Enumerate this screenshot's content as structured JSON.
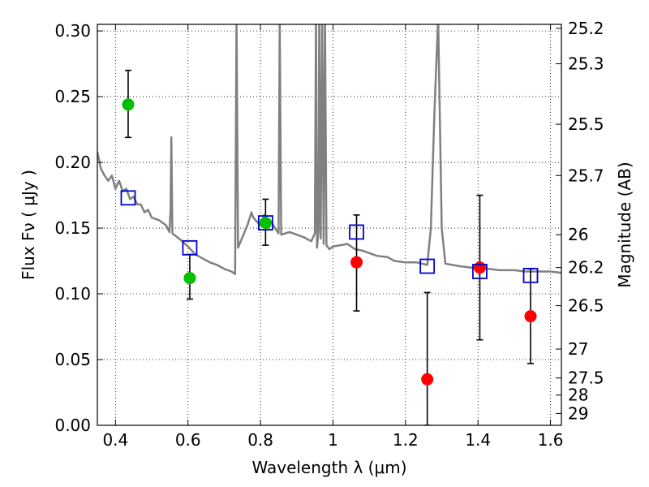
{
  "chart_data": {
    "type": "scatter",
    "xlabel": "Wavelength  λ (μm)",
    "ylabel": "Flux  Fν  ( μJy )",
    "ylabel_right": "Magnitude (AB)",
    "xlim": [
      0.35,
      1.63
    ],
    "ylim": [
      0.0,
      0.305
    ],
    "grid": true,
    "x_ticks": [
      0.4,
      0.6,
      0.8,
      1.0,
      1.2,
      1.4,
      1.6
    ],
    "x_tick_labels": [
      "0.4",
      "0.6",
      "0.8",
      "1",
      "1.2",
      "1.4",
      "1.6"
    ],
    "y_ticks": [
      0.0,
      0.05,
      0.1,
      0.15,
      0.2,
      0.25,
      0.3
    ],
    "y_tick_labels": [
      "0.00",
      "0.05",
      "0.10",
      "0.15",
      "0.20",
      "0.25",
      "0.30"
    ],
    "right_ticks": [
      {
        "label": "25.2",
        "flux": 0.302
      },
      {
        "label": "25.3",
        "flux": 0.275
      },
      {
        "label": "25.5",
        "flux": 0.229
      },
      {
        "label": "25.7",
        "flux": 0.19
      },
      {
        "label": "26",
        "flux": 0.145
      },
      {
        "label": "26.2",
        "flux": 0.12
      },
      {
        "label": "26.5",
        "flux": 0.091
      },
      {
        "label": "27",
        "flux": 0.058
      },
      {
        "label": "27.5",
        "flux": 0.036
      },
      {
        "label": "28",
        "flux": 0.023
      },
      {
        "label": "29",
        "flux": 0.009
      }
    ],
    "series": [
      {
        "kind": "detected",
        "color": "#00c000",
        "points": [
          {
            "x": 0.435,
            "y": 0.244,
            "err_lo": 0.219,
            "err_hi": 0.27
          },
          {
            "x": 0.605,
            "y": 0.112,
            "err_lo": 0.096,
            "err_hi": 0.13
          },
          {
            "x": 0.814,
            "y": 0.154,
            "err_lo": 0.137,
            "err_hi": 0.172
          }
        ]
      },
      {
        "kind": "upper",
        "color": "#ff0000",
        "points": [
          {
            "x": 1.065,
            "y": 0.124,
            "err_lo": 0.087,
            "err_hi": 0.16
          },
          {
            "x": 1.26,
            "y": 0.035,
            "err_lo": 0.0,
            "err_hi": 0.101
          },
          {
            "x": 1.405,
            "y": 0.12,
            "err_lo": 0.065,
            "err_hi": 0.175
          },
          {
            "x": 1.545,
            "y": 0.083,
            "err_lo": 0.047,
            "err_hi": 0.119
          }
        ]
      },
      {
        "kind": "model-photometry",
        "color": "#0000cc",
        "points": [
          {
            "x": 0.435,
            "y": 0.173
          },
          {
            "x": 0.605,
            "y": 0.135
          },
          {
            "x": 0.814,
            "y": 0.154
          },
          {
            "x": 1.065,
            "y": 0.147
          },
          {
            "x": 1.26,
            "y": 0.121
          },
          {
            "x": 1.405,
            "y": 0.117
          },
          {
            "x": 1.545,
            "y": 0.114
          }
        ]
      }
    ],
    "spectrum": {
      "color": "#808080",
      "points": [
        [
          0.35,
          0.208
        ],
        [
          0.36,
          0.195
        ],
        [
          0.37,
          0.19
        ],
        [
          0.38,
          0.186
        ],
        [
          0.39,
          0.19
        ],
        [
          0.4,
          0.18
        ],
        [
          0.41,
          0.186
        ],
        [
          0.42,
          0.178
        ],
        [
          0.43,
          0.18
        ],
        [
          0.44,
          0.172
        ],
        [
          0.45,
          0.174
        ],
        [
          0.46,
          0.168
        ],
        [
          0.47,
          0.168
        ],
        [
          0.48,
          0.162
        ],
        [
          0.49,
          0.164
        ],
        [
          0.5,
          0.158
        ],
        [
          0.52,
          0.156
        ],
        [
          0.54,
          0.152
        ],
        [
          0.549,
          0.147
        ],
        [
          0.552,
          0.165
        ],
        [
          0.554,
          0.219
        ],
        [
          0.557,
          0.146
        ],
        [
          0.58,
          0.141
        ],
        [
          0.6,
          0.136
        ],
        [
          0.62,
          0.13
        ],
        [
          0.64,
          0.127
        ],
        [
          0.66,
          0.124
        ],
        [
          0.68,
          0.122
        ],
        [
          0.7,
          0.119
        ],
        [
          0.72,
          0.117
        ],
        [
          0.73,
          0.115
        ],
        [
          0.734,
          0.31
        ],
        [
          0.738,
          0.135
        ],
        [
          0.75,
          0.143
        ],
        [
          0.765,
          0.153
        ],
        [
          0.775,
          0.162
        ],
        [
          0.78,
          0.158
        ],
        [
          0.79,
          0.155
        ],
        [
          0.8,
          0.152
        ],
        [
          0.81,
          0.16
        ],
        [
          0.82,
          0.15
        ],
        [
          0.83,
          0.155
        ],
        [
          0.84,
          0.15
        ],
        [
          0.85,
          0.146
        ],
        [
          0.853,
          0.31
        ],
        [
          0.857,
          0.145
        ],
        [
          0.88,
          0.147
        ],
        [
          0.9,
          0.145
        ],
        [
          0.92,
          0.143
        ],
        [
          0.94,
          0.14
        ],
        [
          0.95,
          0.146
        ],
        [
          0.953,
          0.31
        ],
        [
          0.956,
          0.135
        ],
        [
          0.96,
          0.148
        ],
        [
          0.962,
          0.31
        ],
        [
          0.966,
          0.142
        ],
        [
          0.97,
          0.31
        ],
        [
          0.974,
          0.138
        ],
        [
          0.978,
          0.31
        ],
        [
          0.982,
          0.137
        ],
        [
          0.99,
          0.134
        ],
        [
          1.0,
          0.136
        ],
        [
          1.02,
          0.137
        ],
        [
          1.04,
          0.138
        ],
        [
          1.05,
          0.136
        ],
        [
          1.06,
          0.134
        ],
        [
          1.08,
          0.133
        ],
        [
          1.1,
          0.131
        ],
        [
          1.12,
          0.129
        ],
        [
          1.15,
          0.128
        ],
        [
          1.17,
          0.125
        ],
        [
          1.2,
          0.124
        ],
        [
          1.23,
          0.124
        ],
        [
          1.26,
          0.122
        ],
        [
          1.27,
          0.15
        ],
        [
          1.28,
          0.24
        ],
        [
          1.29,
          0.31
        ],
        [
          1.3,
          0.15
        ],
        [
          1.31,
          0.123
        ],
        [
          1.33,
          0.122
        ],
        [
          1.35,
          0.121
        ],
        [
          1.38,
          0.12
        ],
        [
          1.4,
          0.12
        ],
        [
          1.43,
          0.119
        ],
        [
          1.46,
          0.118
        ],
        [
          1.5,
          0.118
        ],
        [
          1.53,
          0.117
        ],
        [
          1.56,
          0.117
        ],
        [
          1.6,
          0.117
        ],
        [
          1.63,
          0.116
        ]
      ]
    }
  }
}
